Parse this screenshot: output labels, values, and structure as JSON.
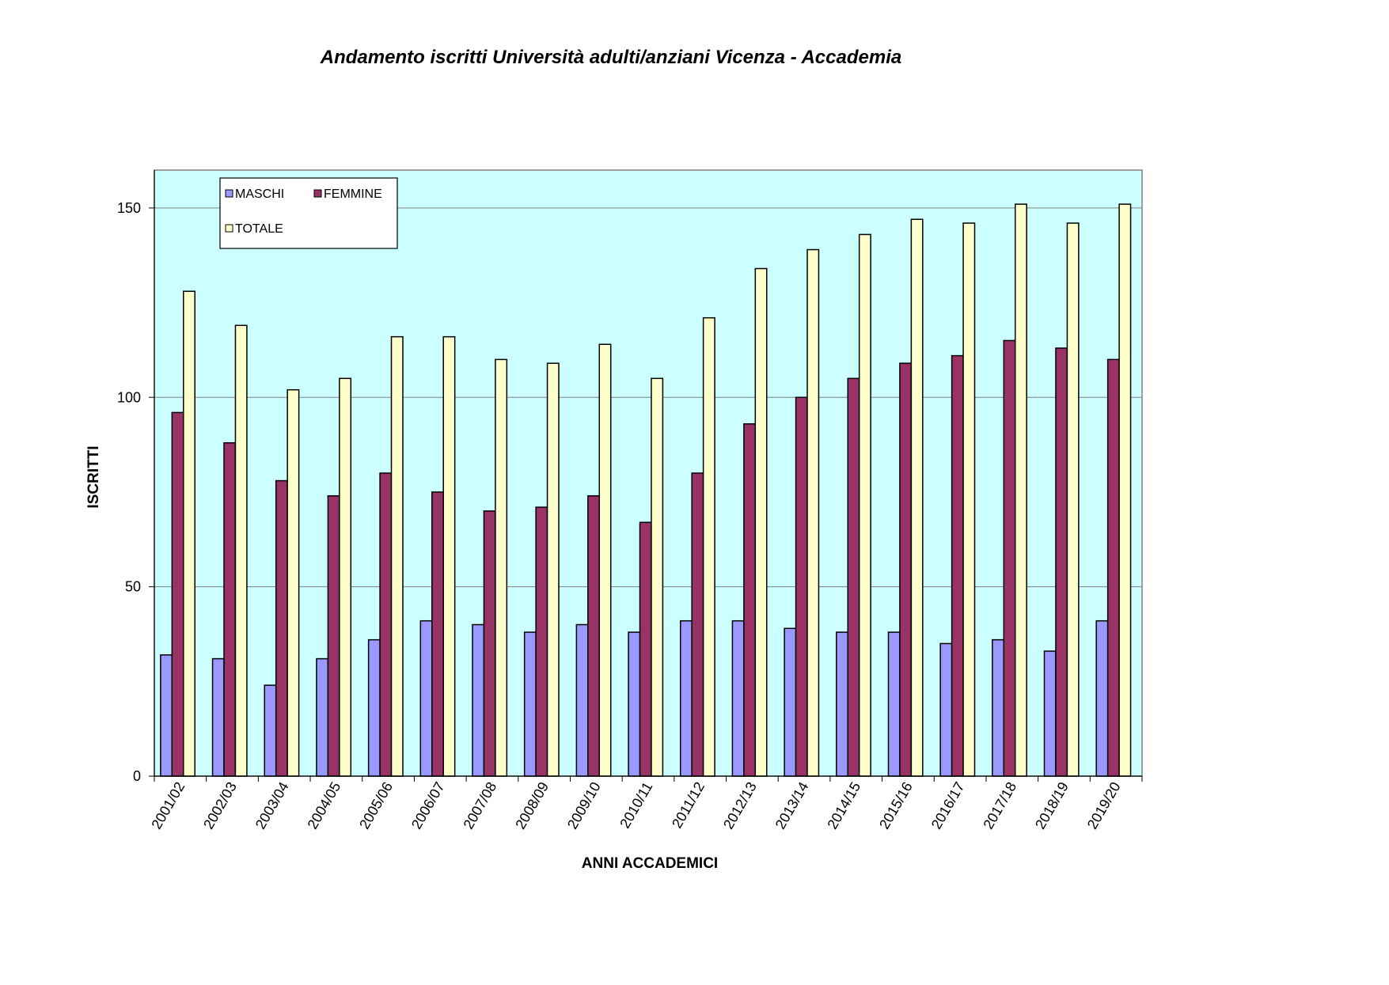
{
  "chart_data": {
    "type": "bar",
    "title": "Andamento iscritti Università adulti/anziani Vicenza - Accademia",
    "xlabel": "ANNI ACCADEMICI",
    "ylabel": "ISCRITTI",
    "ylim": [
      0,
      160
    ],
    "yticks": [
      0,
      50,
      100,
      150
    ],
    "yticks_labels": [
      "0",
      "50",
      "100",
      "150"
    ],
    "grid": true,
    "legend_position": "top-left",
    "categories": [
      "2001/02",
      "2002/03",
      "2003/04",
      "2004/05",
      "2005/06",
      "2006/07",
      "2007/08",
      "2008/09",
      "2009/10",
      "2010/11",
      "2011/12",
      "2012/13",
      "2013/14",
      "2014/15",
      "2015/16",
      "2016/17",
      "2017/18",
      "2018/19",
      "2019/20"
    ],
    "series": [
      {
        "name": "MASCHI",
        "color": "#9999ff",
        "values": [
          32,
          31,
          24,
          31,
          36,
          41,
          40,
          38,
          40,
          38,
          41,
          41,
          39,
          38,
          38,
          35,
          36,
          33,
          41
        ]
      },
      {
        "name": "FEMMINE",
        "color": "#993366",
        "values": [
          96,
          88,
          78,
          74,
          80,
          75,
          70,
          71,
          74,
          67,
          80,
          93,
          100,
          105,
          109,
          111,
          115,
          113,
          110
        ]
      },
      {
        "name": "TOTALE",
        "color": "#ffffcc",
        "values": [
          128,
          119,
          102,
          105,
          116,
          116,
          110,
          109,
          114,
          105,
          121,
          134,
          139,
          143,
          147,
          146,
          151,
          146,
          151
        ]
      }
    ],
    "colors": {
      "plot_background": "#ccffff",
      "gridline": "#808080",
      "bar_outline": "#000000"
    }
  }
}
